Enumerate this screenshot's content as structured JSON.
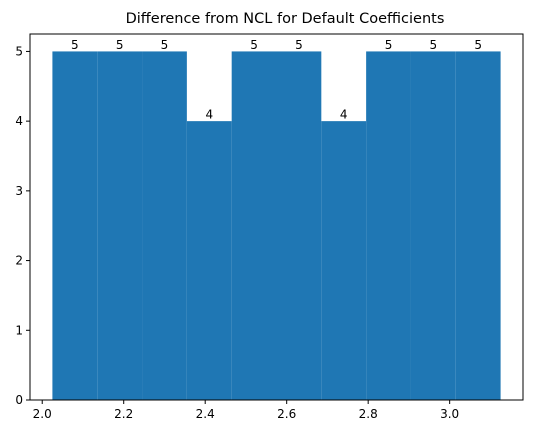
{
  "chart_data": {
    "type": "bar",
    "title": "Difference from NCL for Default Coefficients",
    "xlabel": "",
    "ylabel": "",
    "bin_edges": [
      2.025,
      2.135,
      2.245,
      2.355,
      2.465,
      2.575,
      2.685,
      2.795,
      2.905,
      3.015,
      3.125
    ],
    "values": [
      5,
      5,
      5,
      4,
      5,
      5,
      4,
      5,
      5,
      5
    ],
    "data_labels": [
      "5",
      "5",
      "5",
      "4",
      "5",
      "5",
      "4",
      "5",
      "5",
      "5"
    ],
    "xlim": [
      1.97,
      3.18
    ],
    "ylim": [
      0,
      5.25
    ],
    "x_ticks": [
      2.0,
      2.2,
      2.4,
      2.6,
      2.8,
      3.0
    ],
    "x_tick_labels": [
      "2.0",
      "2.2",
      "2.4",
      "2.6",
      "2.8",
      "3.0"
    ],
    "y_ticks": [
      0,
      1,
      2,
      3,
      4,
      5
    ],
    "y_tick_labels": [
      "0",
      "1",
      "2",
      "3",
      "4",
      "5"
    ],
    "bar_color": "#1f77b4",
    "grid": false,
    "legend": "none"
  }
}
